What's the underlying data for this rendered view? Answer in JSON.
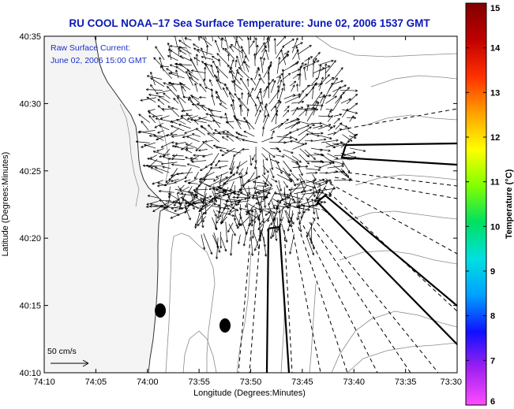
{
  "title": "RU COOL  NOAA–17  Sea Surface Temperature:  June 02, 2006 1537 GMT",
  "legend": {
    "line1": "Raw Surface Current:",
    "line2": "June 02, 2006 15:00 GMT"
  },
  "scale_label": "50 cm/s",
  "x_axis": {
    "label": "Longitude (Degrees:Minutes)",
    "ticks": [
      "74:10",
      "74:05",
      "74:00",
      "73:55",
      "73:50",
      "73:45",
      "73:40",
      "73:35",
      "73:30"
    ]
  },
  "y_axis": {
    "label": "Latitude (Degrees:Minutes)",
    "ticks": [
      "40:35",
      "40:30",
      "40:25",
      "40:20",
      "40:15",
      "40:10"
    ]
  },
  "colorbar": {
    "label": "Temperature (°C)",
    "ticks": [
      "15",
      "14",
      "13",
      "12",
      "11",
      "10",
      "9",
      "8",
      "7",
      "6"
    ],
    "colors": [
      "#ff4dff",
      "#a020f0",
      "#1010ff",
      "#00a0ff",
      "#00e0e0",
      "#00e060",
      "#80ff00",
      "#ffff00",
      "#ffa000",
      "#ff3000",
      "#c00000",
      "#800000"
    ]
  }
}
